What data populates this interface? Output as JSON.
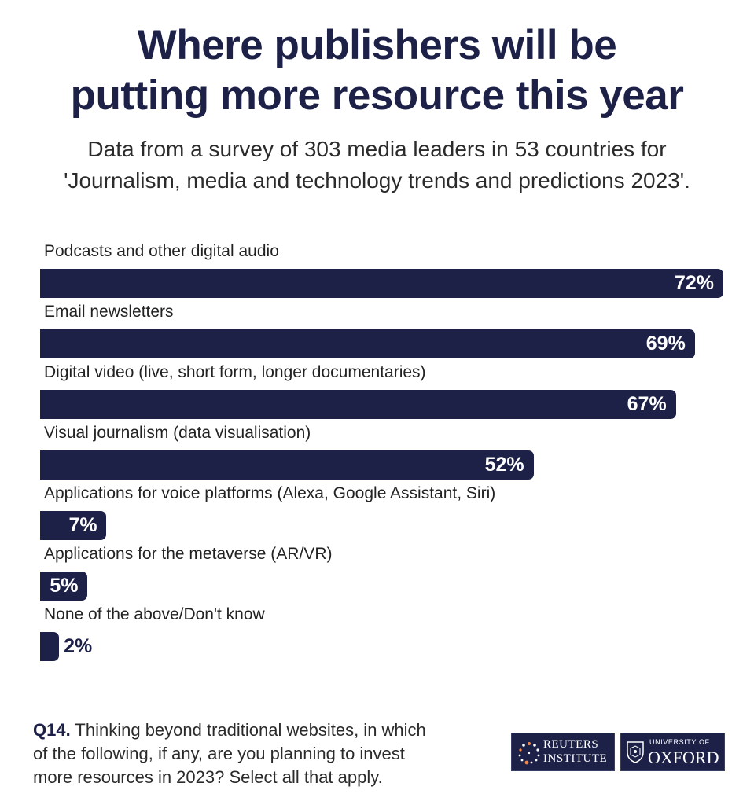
{
  "title_line1": "Where publishers will be",
  "title_line2": "putting more resource this year",
  "subtitle_line1": "Data from a survey of 303 media leaders in 53 countries for",
  "subtitle_line2": "'Journalism, media and technology trends and predictions 2023'.",
  "question": {
    "code": "Q14.",
    "line1": "Thinking beyond traditional websites, in which",
    "line2": "of the following, if any, are you planning to invest",
    "line3": "more resources in 2023? Select all that apply."
  },
  "logos": {
    "reuters_line1": "REUTERS",
    "reuters_line2": "INSTITUTE",
    "oxford_line1": "UNIVERSITY OF",
    "oxford_line2": "OXFORD"
  },
  "colors": {
    "bar": "#1d2148",
    "text_on_bar": "#ffffff",
    "text_off_bar": "#1d2148"
  },
  "chart_data": {
    "type": "bar",
    "orientation": "horizontal",
    "categories": [
      "Podcasts and other digital audio",
      "Email newsletters",
      "Digital video (live, short form, longer documentaries)",
      "Visual journalism (data visualisation)",
      "Applications for voice platforms (Alexa, Google Assistant, Siri)",
      "Applications for the metaverse (AR/VR)",
      "None of the above/Don't know"
    ],
    "values": [
      72,
      69,
      67,
      52,
      7,
      5,
      2
    ],
    "value_labels": [
      "72%",
      "69%",
      "67%",
      "52%",
      "7%",
      "5%",
      "2%"
    ],
    "unit": "%",
    "xlim": [
      0,
      72
    ],
    "grid": false,
    "legend": "none"
  }
}
